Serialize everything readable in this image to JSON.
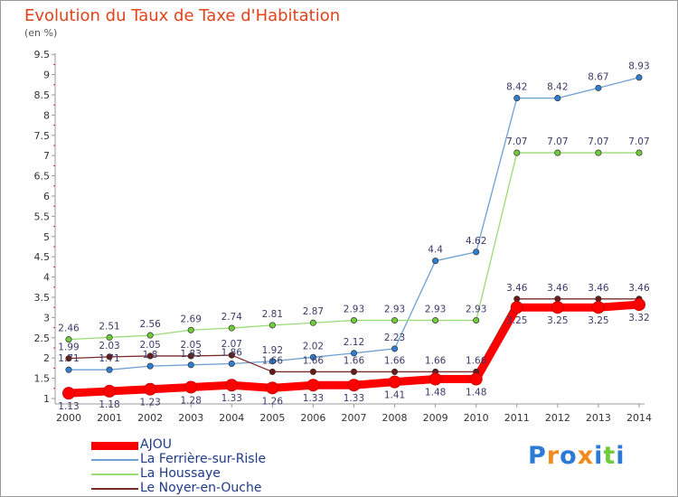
{
  "chart_data": {
    "type": "line",
    "title": "Evolution du Taux de Taxe d'Habitation",
    "ylabel": "(en %)",
    "xlabel": "",
    "categories": [
      "2000",
      "2001",
      "2002",
      "2003",
      "2004",
      "2005",
      "2006",
      "2007",
      "2008",
      "2009",
      "2010",
      "2011",
      "2012",
      "2013",
      "2014"
    ],
    "y_ticks": [
      "1",
      "1.5",
      "2",
      "2.5",
      "3",
      "3.5",
      "4",
      "4.5",
      "5",
      "5.5",
      "6",
      "6.5",
      "7",
      "7.5",
      "8",
      "8.5",
      "9",
      "9.5"
    ],
    "ylim": [
      1,
      9.5
    ],
    "grid": false,
    "legend_position": "bottom-left",
    "series": [
      {
        "name": "AJOU",
        "color": "#ff0000",
        "values": [
          1.13,
          1.18,
          1.23,
          1.28,
          1.33,
          1.26,
          1.33,
          1.33,
          1.41,
          1.48,
          1.48,
          3.25,
          3.25,
          3.25,
          3.32
        ],
        "labels": [
          "1.13",
          "1.18",
          "1.23",
          "1.28",
          "1.33",
          "1.26",
          "1.33",
          "1.33",
          "1.41",
          "1.48",
          "1.48",
          "3.25",
          "3.25",
          "3.25",
          "3.32"
        ]
      },
      {
        "name": "La Ferrière-sur-Risle",
        "color": "#6fa0d4",
        "marker_color": "#2e7fd1",
        "values": [
          1.71,
          1.71,
          1.8,
          1.83,
          1.86,
          1.92,
          2.02,
          2.12,
          2.23,
          4.4,
          4.62,
          8.42,
          8.42,
          8.67,
          8.93
        ],
        "labels": [
          "1.71",
          "1.71",
          "1.8",
          "1.83",
          "1.86",
          "1.92",
          "2.02",
          "2.12",
          "2.23",
          "4.4",
          "4.62",
          "8.42",
          "8.42",
          "8.67",
          "8.93"
        ]
      },
      {
        "name": "La Houssaye",
        "color": "#9adb74",
        "marker_color": "#6fcb3c",
        "values": [
          2.46,
          2.51,
          2.56,
          2.69,
          2.74,
          2.81,
          2.87,
          2.93,
          2.93,
          2.93,
          2.93,
          7.07,
          7.07,
          7.07,
          7.07
        ],
        "labels": [
          "2.46",
          "2.51",
          "2.56",
          "2.69",
          "2.74",
          "2.81",
          "2.87",
          "2.93",
          "2.93",
          "2.93",
          "2.93",
          "7.07",
          "7.07",
          "7.07",
          "7.07"
        ]
      },
      {
        "name": "Le Noyer-en-Ouche",
        "color": "#7b2a2a",
        "marker_color": "#6b1a1a",
        "values": [
          1.99,
          2.03,
          2.05,
          2.05,
          2.07,
          1.66,
          1.66,
          1.66,
          1.66,
          1.66,
          1.66,
          3.46,
          3.46,
          3.46,
          3.46
        ],
        "labels": [
          "1.99",
          "2.03",
          "2.05",
          "2.05",
          "2.07",
          "1.66",
          "1.66",
          "1.66",
          "1.66",
          "1.66",
          "1.66",
          "3.46",
          "3.46",
          "3.46",
          "3.46"
        ]
      }
    ]
  },
  "logo": {
    "letters": [
      "P",
      "r",
      "o",
      "x",
      "i",
      "t",
      "i"
    ],
    "colors": [
      "#2b7bd6",
      "#f28a1d",
      "#2b7bd6",
      "#f28a1d",
      "#2b7bd6",
      "#6fcb3c",
      "#2b7bd6"
    ]
  }
}
